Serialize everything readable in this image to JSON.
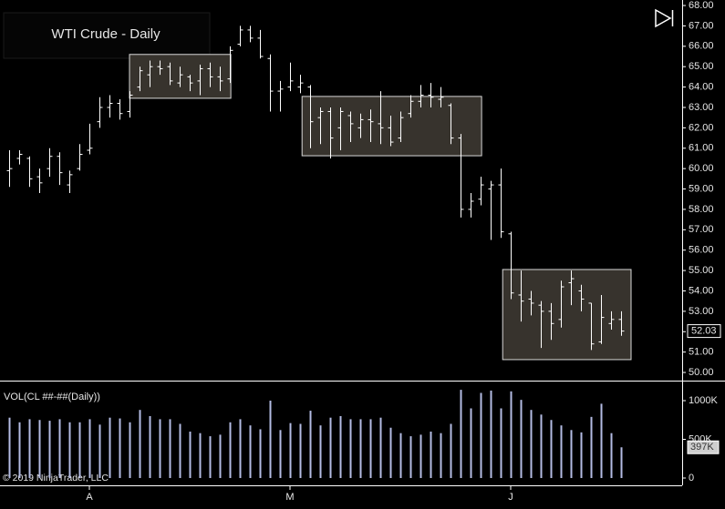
{
  "chart_data": {
    "type": "ohlc",
    "title": "WTI Crude - Daily",
    "indicator_label": "VOL(CL ##-##(Daily))",
    "copyright": "© 2019 NinjaTrader, LLC",
    "bar_color": "#ffffff",
    "volume_color": "#b4bce4",
    "grid": false,
    "categories": [
      null,
      null,
      null,
      null,
      null,
      null,
      null,
      null,
      "A",
      null,
      null,
      null,
      null,
      null,
      null,
      null,
      null,
      null,
      null,
      null,
      null,
      null,
      null,
      null,
      null,
      null,
      null,
      null,
      "M",
      null,
      null,
      null,
      null,
      null,
      null,
      null,
      null,
      null,
      null,
      null,
      null,
      null,
      null,
      null,
      null,
      null,
      null,
      null,
      null,
      null,
      "J",
      null,
      null,
      null,
      null,
      null,
      null,
      null,
      null,
      null,
      null,
      null
    ],
    "open": [
      59.9,
      60.5,
      60.5,
      59.6,
      60.0,
      60.6,
      59.2,
      60.0,
      60.9,
      62.3,
      63.0,
      63.2,
      62.8,
      64.0,
      64.6,
      65.0,
      65.0,
      64.2,
      64.5,
      64.3,
      64.9,
      64.5,
      64.4,
      66.1,
      66.8,
      66.4,
      65.4,
      63.8,
      64.0,
      64.0,
      64.0,
      62.5,
      62.8,
      62.0,
      62.6,
      62.0,
      62.4,
      62.2,
      62.0,
      61.5,
      62.7,
      63.3,
      63.6,
      63.4,
      63.1,
      61.5,
      58.0,
      58.5,
      59.0,
      59.2,
      56.8,
      53.8,
      53.6,
      53.3,
      53.0,
      52.6,
      54.4,
      54.0,
      53.4,
      51.5,
      52.4,
      52.6
    ],
    "high": [
      60.9,
      60.9,
      60.6,
      60.0,
      61.0,
      60.8,
      59.9,
      61.2,
      62.2,
      63.5,
      63.6,
      63.4,
      63.8,
      65.0,
      65.3,
      65.3,
      65.2,
      65.0,
      64.6,
      65.1,
      65.2,
      65.0,
      66.0,
      67.0,
      67.0,
      66.8,
      65.6,
      64.3,
      65.2,
      64.6,
      64.1,
      63.0,
      63.0,
      63.0,
      62.8,
      62.7,
      62.9,
      63.8,
      62.6,
      62.8,
      63.6,
      64.1,
      64.2,
      64.0,
      63.2,
      61.7,
      58.8,
      59.6,
      59.4,
      60.0,
      56.9,
      55.0,
      54.0,
      53.5,
      53.4,
      54.5,
      55.0,
      54.3,
      53.4,
      53.8,
      53.0,
      53.0
    ],
    "low": [
      59.1,
      60.2,
      59.1,
      58.8,
      59.6,
      59.2,
      58.8,
      59.9,
      60.7,
      62.0,
      62.5,
      62.4,
      62.5,
      63.8,
      64.0,
      64.6,
      64.1,
      64.0,
      63.8,
      63.6,
      64.0,
      63.8,
      64.2,
      66.0,
      66.2,
      65.4,
      62.8,
      62.8,
      63.8,
      63.7,
      61.0,
      61.2,
      60.5,
      60.9,
      61.3,
      61.5,
      61.3,
      61.2,
      61.1,
      61.3,
      62.5,
      63.0,
      63.0,
      63.0,
      61.2,
      57.6,
      57.6,
      58.2,
      56.5,
      56.6,
      53.6,
      52.5,
      52.8,
      51.2,
      51.6,
      52.2,
      53.3,
      53.0,
      51.1,
      51.4,
      52.1,
      51.8
    ],
    "close": [
      60.0,
      60.7,
      59.5,
      59.3,
      60.6,
      59.8,
      59.7,
      60.7,
      61.0,
      63.0,
      63.2,
      62.7,
      63.6,
      64.8,
      65.0,
      64.9,
      64.3,
      64.6,
      64.2,
      64.9,
      64.5,
      64.3,
      65.8,
      66.8,
      66.4,
      65.5,
      63.8,
      63.9,
      64.3,
      64.2,
      62.3,
      62.8,
      61.5,
      62.8,
      62.2,
      62.4,
      62.3,
      62.0,
      61.3,
      62.5,
      63.3,
      63.6,
      63.5,
      63.5,
      61.5,
      58.0,
      58.4,
      59.2,
      59.2,
      56.9,
      53.9,
      53.5,
      53.4,
      53.0,
      52.4,
      54.2,
      54.6,
      53.6,
      51.4,
      52.7,
      52.6,
      52.03
    ],
    "volume": {
      "values": [
        780,
        720,
        760,
        750,
        740,
        760,
        720,
        720,
        760,
        690,
        780,
        770,
        720,
        880,
        800,
        760,
        760,
        700,
        600,
        580,
        540,
        560,
        720,
        760,
        680,
        630,
        1000,
        620,
        710,
        700,
        870,
        680,
        780,
        800,
        760,
        760,
        760,
        780,
        650,
        580,
        540,
        560,
        600,
        580,
        700,
        1140,
        900,
        1100,
        1130,
        900,
        1120,
        1010,
        880,
        820,
        750,
        680,
        620,
        590,
        790,
        960,
        580,
        397
      ],
      "value_labels": [
        null,
        null,
        null,
        null,
        null,
        null,
        null,
        null,
        null,
        null,
        null,
        null,
        null,
        null,
        null,
        null,
        null,
        null,
        null,
        null,
        null,
        null,
        null,
        null,
        null,
        null,
        null,
        null,
        null,
        null,
        null,
        null,
        null,
        null,
        null,
        null,
        null,
        null,
        null,
        null,
        null,
        null,
        null,
        null,
        null,
        null,
        null,
        null,
        null,
        null,
        null,
        null,
        null,
        null,
        null,
        null,
        null,
        null,
        null,
        null,
        null,
        "397K"
      ]
    },
    "boxes": [
      {
        "start": 12,
        "end": 22.1,
        "top": 65.6,
        "bottom": 63.45
      },
      {
        "start": 29.2,
        "end": 47.1,
        "top": 63.54,
        "bottom": 60.63
      },
      {
        "start": 49.2,
        "end": 62.0,
        "top": 55.05,
        "bottom": 50.63
      }
    ],
    "ylim": [
      49.6,
      68.27
    ],
    "yticks": [
      {
        "value": 50,
        "label": "50.00"
      },
      {
        "value": 51,
        "label": "51.00"
      },
      {
        "value": 52,
        "label": "52.00"
      },
      {
        "value": 53,
        "label": "53.00"
      },
      {
        "value": 54,
        "label": "54.00"
      },
      {
        "value": 55,
        "label": "55.00"
      },
      {
        "value": 56,
        "label": "56.00"
      },
      {
        "value": 57,
        "label": "57.00"
      },
      {
        "value": 58,
        "label": "58.00"
      },
      {
        "value": 59,
        "label": "59.00"
      },
      {
        "value": 60,
        "label": "60.00"
      },
      {
        "value": 61,
        "label": "61.00"
      },
      {
        "value": 62,
        "label": "62.00"
      },
      {
        "value": 63,
        "label": "63.00"
      },
      {
        "value": 64,
        "label": "64.00"
      },
      {
        "value": 65,
        "label": "65.00"
      },
      {
        "value": 66,
        "label": "66.00"
      },
      {
        "value": 67,
        "label": "67.00"
      },
      {
        "value": 68,
        "label": "68.00"
      }
    ],
    "y2lim": [
      -59,
      1247
    ],
    "y2ticks": [
      0,
      {
        "value": 500,
        "label": "500K"
      },
      {
        "value": 1000,
        "label": "1000K"
      }
    ]
  }
}
